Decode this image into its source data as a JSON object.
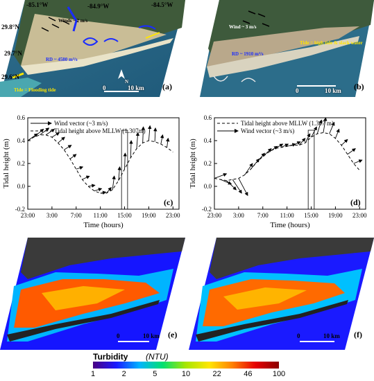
{
  "panels": {
    "a": {
      "label": "(a)",
      "coords_top": [
        "-85.1°W",
        "-84.9°W",
        "-84.5°W"
      ],
      "coords_left": [
        "29.8°N",
        "29.7°N",
        "29.6°N"
      ],
      "winds_text": "Winds ~ 2 m/s",
      "rd_text": "RD ~ 4580 m³/s",
      "tide_text": "Tide = Flooding tide",
      "scale_zero": "0",
      "scale_label": "10 km",
      "north_label": "N"
    },
    "b": {
      "label": "(b)",
      "wind_text": "Wind ~ 3 m/s",
      "rd_text": "RD ~ 1910 m³/s",
      "tide_text": "Tide = high tide & slack water",
      "scale_zero": "0",
      "scale_label": "10 km"
    },
    "c": {
      "label": "(c)"
    },
    "d": {
      "label": "(d)"
    },
    "e": {
      "label": "(e)",
      "scale_zero": "0",
      "scale_label": "10 km"
    },
    "f": {
      "label": "(f)",
      "scale_zero": "0",
      "scale_label": "10 km"
    }
  },
  "colorbar": {
    "title": "Turbidity",
    "unit": "(NTU)",
    "ticks": [
      "1",
      "2",
      "5",
      "10",
      "22",
      "46",
      "100"
    ],
    "colors": [
      "#4b0082",
      "#1a1aff",
      "#00b4ff",
      "#00e070",
      "#a8e600",
      "#ffe600",
      "#ff8000",
      "#e60000",
      "#8b0000"
    ]
  },
  "chart_data": [
    {
      "type": "line",
      "panel": "(c)",
      "xlabel": "Time (hours)",
      "ylabel": "Tidal height (m)",
      "xticks": [
        "23:00",
        "3:00",
        "7:00",
        "11:00",
        "15:00",
        "19:00",
        "23:00"
      ],
      "xlim": [
        23,
        48
      ],
      "ylim": [
        -0.2,
        0.6
      ],
      "yticks": [
        -0.2,
        0.0,
        0.2,
        0.4,
        0.6
      ],
      "legend": [
        {
          "name": "Wind vector (~3 m/s)",
          "style": "arrow"
        },
        {
          "name": "Tidal height above MLLW (1.307m)",
          "style": "dashed"
        }
      ],
      "tide": {
        "x": [
          23,
          24,
          25,
          26,
          27,
          28,
          29,
          30,
          31,
          32,
          33,
          34,
          35,
          36,
          37,
          38,
          39,
          40,
          41,
          42,
          43,
          44,
          45,
          46,
          47
        ],
        "y": [
          0.4,
          0.43,
          0.45,
          0.45,
          0.43,
          0.38,
          0.32,
          0.24,
          0.15,
          0.06,
          0.0,
          -0.04,
          -0.06,
          -0.06,
          -0.03,
          0.05,
          0.15,
          0.25,
          0.33,
          0.38,
          0.4,
          0.39,
          0.37,
          0.34,
          0.3
        ]
      },
      "wind_arrows": [
        {
          "x": 23,
          "y": 0.4,
          "dx": 1.6,
          "dy": 0.06
        },
        {
          "x": 24,
          "y": 0.43,
          "dx": 1.6,
          "dy": 0.07
        },
        {
          "x": 25,
          "y": 0.45,
          "dx": 1.5,
          "dy": 0.06
        },
        {
          "x": 26,
          "y": 0.45,
          "dx": 1.4,
          "dy": 0.05
        },
        {
          "x": 27,
          "y": 0.43,
          "dx": 1.2,
          "dy": 0.04
        },
        {
          "x": 28,
          "y": 0.38,
          "dx": 1.1,
          "dy": 0.05
        },
        {
          "x": 29,
          "y": 0.32,
          "dx": 1.2,
          "dy": 0.04
        },
        {
          "x": 30,
          "y": 0.24,
          "dx": 1.0,
          "dy": 0.04
        },
        {
          "x": 31,
          "y": 0.15,
          "dx": 1.1,
          "dy": 0.02
        },
        {
          "x": 32,
          "y": 0.06,
          "dx": 1.2,
          "dy": 0.03
        },
        {
          "x": 33,
          "y": 0.0,
          "dx": 1.1,
          "dy": 0.01
        },
        {
          "x": 34,
          "y": -0.04,
          "dx": 1.2,
          "dy": 0.02
        },
        {
          "x": 35,
          "y": -0.06,
          "dx": 0.9,
          "dy": 0.01
        },
        {
          "x": 36,
          "y": -0.06,
          "dx": 0.8,
          "dy": 0.05
        },
        {
          "x": 37,
          "y": -0.03,
          "dx": 0.3,
          "dy": 0.12
        },
        {
          "x": 38,
          "y": 0.05,
          "dx": 0.2,
          "dy": 0.12
        },
        {
          "x": 39,
          "y": 0.15,
          "dx": 0.1,
          "dy": 0.14
        },
        {
          "x": 40,
          "y": 0.25,
          "dx": 0.1,
          "dy": 0.15
        },
        {
          "x": 41,
          "y": 0.33,
          "dx": 0.2,
          "dy": 0.14
        },
        {
          "x": 42,
          "y": 0.38,
          "dx": 0.1,
          "dy": 0.14
        },
        {
          "x": 43,
          "y": 0.4,
          "dx": 0.2,
          "dy": 0.13
        },
        {
          "x": 44,
          "y": 0.39,
          "dx": 0.1,
          "dy": 0.12
        },
        {
          "x": 45,
          "y": 0.37,
          "dx": 0.3,
          "dy": 0.08
        },
        {
          "x": 46,
          "y": 0.34,
          "dx": 0.2,
          "dy": 0.08
        }
      ],
      "highlight_x": [
        38.5,
        39.5
      ]
    },
    {
      "type": "line",
      "panel": "(d)",
      "xlabel": "Time (hours)",
      "ylabel": "Tidal height (m)",
      "xticks": [
        "23:00",
        "3:00",
        "7:00",
        "11:00",
        "15:00",
        "19:00",
        "23:00"
      ],
      "xlim": [
        23,
        48
      ],
      "ylim": [
        -0.2,
        0.6
      ],
      "yticks": [
        -0.2,
        0.0,
        0.2,
        0.4,
        0.6
      ],
      "legend": [
        {
          "name": "Tidal height above MLLW (1.307 m)",
          "style": "dashed"
        },
        {
          "name": "Wind vector (~3 m/s)",
          "style": "arrow"
        }
      ],
      "tide": {
        "x": [
          23,
          24,
          25,
          26,
          27,
          28,
          29,
          30,
          31,
          32,
          33,
          34,
          35,
          36,
          37,
          38,
          39,
          40,
          41,
          42,
          43,
          44,
          45,
          46,
          47
        ],
        "y": [
          0.07,
          0.06,
          0.05,
          0.06,
          0.07,
          0.1,
          0.15,
          0.21,
          0.26,
          0.3,
          0.33,
          0.34,
          0.35,
          0.36,
          0.36,
          0.38,
          0.43,
          0.46,
          0.47,
          0.46,
          0.42,
          0.36,
          0.28,
          0.2,
          0.14
        ]
      },
      "wind_arrows": [
        {
          "x": 23,
          "y": 0.07,
          "dx": 2.0,
          "dy": 0.04
        },
        {
          "x": 24,
          "y": 0.06,
          "dx": 1.8,
          "dy": -0.04
        },
        {
          "x": 25,
          "y": 0.05,
          "dx": 1.6,
          "dy": -0.08
        },
        {
          "x": 26,
          "y": 0.06,
          "dx": 1.5,
          "dy": -0.12
        },
        {
          "x": 27,
          "y": 0.07,
          "dx": 1.5,
          "dy": -0.15
        },
        {
          "x": 28,
          "y": 0.1,
          "dx": 1.3,
          "dy": 0.1
        },
        {
          "x": 29,
          "y": 0.15,
          "dx": 1.4,
          "dy": 0.09
        },
        {
          "x": 30,
          "y": 0.21,
          "dx": 1.3,
          "dy": 0.08
        },
        {
          "x": 31,
          "y": 0.26,
          "dx": 1.4,
          "dy": 0.07
        },
        {
          "x": 32,
          "y": 0.3,
          "dx": 1.4,
          "dy": 0.05
        },
        {
          "x": 33,
          "y": 0.33,
          "dx": 1.3,
          "dy": 0.04
        },
        {
          "x": 34,
          "y": 0.34,
          "dx": 1.2,
          "dy": 0.03
        },
        {
          "x": 35,
          "y": 0.35,
          "dx": 1.4,
          "dy": 0.02
        },
        {
          "x": 36,
          "y": 0.36,
          "dx": 1.2,
          "dy": 0.03
        },
        {
          "x": 37,
          "y": 0.36,
          "dx": 1.0,
          "dy": 0.06
        },
        {
          "x": 38,
          "y": 0.38,
          "dx": 0.8,
          "dy": 0.08
        },
        {
          "x": 39,
          "y": 0.43,
          "dx": 0.9,
          "dy": 0.09
        },
        {
          "x": 40,
          "y": 0.46,
          "dx": 0.7,
          "dy": 0.12
        },
        {
          "x": 41,
          "y": 0.47,
          "dx": 0.4,
          "dy": 0.13
        },
        {
          "x": 42,
          "y": 0.46,
          "dx": 0.8,
          "dy": 0.1
        },
        {
          "x": 43,
          "y": 0.42,
          "dx": 0.6,
          "dy": 0.08
        },
        {
          "x": 44,
          "y": 0.36,
          "dx": 1.0,
          "dy": 0.05
        },
        {
          "x": 45,
          "y": 0.28,
          "dx": 1.3,
          "dy": 0.05
        },
        {
          "x": 46,
          "y": 0.2,
          "dx": 1.4,
          "dy": 0.03
        }
      ],
      "highlight_x": [
        38.5,
        39.5
      ]
    }
  ]
}
